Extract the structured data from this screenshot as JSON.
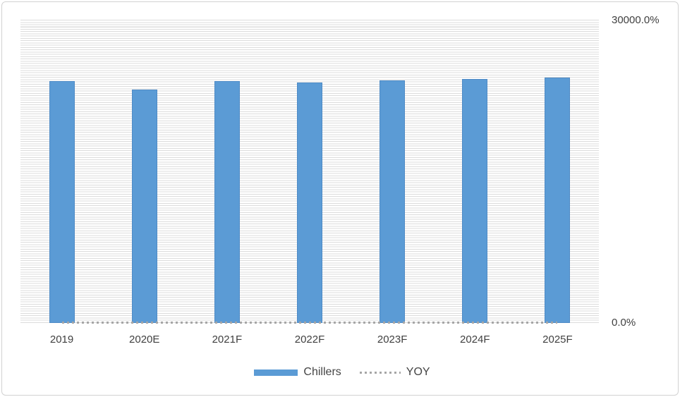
{
  "chart_data": {
    "type": "combo",
    "categories": [
      "2019",
      "2020E",
      "2021F",
      "2022F",
      "2023F",
      "2024F",
      "2025F"
    ],
    "series": [
      {
        "name": "Chillers",
        "type": "bar",
        "values": [
          23900,
          23100,
          23950,
          23800,
          24000,
          24150,
          24250
        ],
        "color": "#5B9BD5"
      },
      {
        "name": "YOY",
        "type": "line",
        "style": "dotted",
        "values": [
          0,
          0,
          0,
          0,
          0,
          0,
          0
        ],
        "color": "#A6A6A6"
      }
    ],
    "title": "",
    "xlabel": "",
    "ylabel": "",
    "ylim": [
      0,
      30000
    ],
    "y_axis_format": "percent",
    "y_tick_labels": [
      "0.0%",
      "30000.0%"
    ],
    "grid": "dense horizontal minor gridlines",
    "legend_position": "bottom-center"
  },
  "colors": {
    "bar_fill": "#5B9BD5",
    "yoy_dots": "#A6A6A6",
    "gridline": "#DCDCDC",
    "axis_text": "#404040",
    "frame_border": "#D2D2D2",
    "background": "#FFFFFF"
  }
}
